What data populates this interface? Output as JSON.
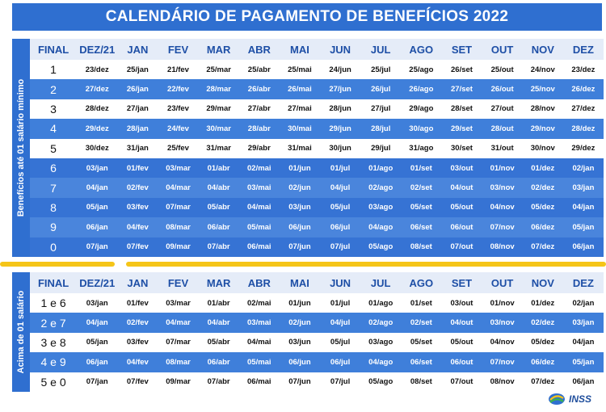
{
  "title": "CALENDÁRIO DE PAGAMENTO DE BENEFÍCIOS 2022",
  "headers": [
    "FINAL",
    "DEZ/21",
    "JAN",
    "FEV",
    "MAR",
    "ABR",
    "MAI",
    "JUN",
    "JUL",
    "AGO",
    "SET",
    "OUT",
    "NOV",
    "DEZ"
  ],
  "section1": {
    "side_label": "Benefícios até 01 salário mínimo",
    "rows": [
      [
        "1",
        "23/dez",
        "25/jan",
        "21/fev",
        "25/mar",
        "25/abr",
        "25/mai",
        "24/jun",
        "25/jul",
        "25/ago",
        "26/set",
        "25/out",
        "24/nov",
        "23/dez"
      ],
      [
        "2",
        "27/dez",
        "26/jan",
        "22/fev",
        "28/mar",
        "26/abr",
        "26/mai",
        "27/jun",
        "26/jul",
        "26/ago",
        "27/set",
        "26/out",
        "25/nov",
        "26/dez"
      ],
      [
        "3",
        "28/dez",
        "27/jan",
        "23/fev",
        "29/mar",
        "27/abr",
        "27/mai",
        "28/jun",
        "27/jul",
        "29/ago",
        "28/set",
        "27/out",
        "28/nov",
        "27/dez"
      ],
      [
        "4",
        "29/dez",
        "28/jan",
        "24/fev",
        "30/mar",
        "28/abr",
        "30/mai",
        "29/jun",
        "28/jul",
        "30/ago",
        "29/set",
        "28/out",
        "29/nov",
        "28/dez"
      ],
      [
        "5",
        "30/dez",
        "31/jan",
        "25/fev",
        "31/mar",
        "29/abr",
        "31/mai",
        "30/jun",
        "29/jul",
        "31/ago",
        "30/set",
        "31/out",
        "30/nov",
        "29/dez"
      ],
      [
        "6",
        "03/jan",
        "01/fev",
        "03/mar",
        "01/abr",
        "02/mai",
        "01/jun",
        "01/jul",
        "01/ago",
        "01/set",
        "03/out",
        "01/nov",
        "01/dez",
        "02/jan"
      ],
      [
        "7",
        "04/jan",
        "02/fev",
        "04/mar",
        "04/abr",
        "03/mai",
        "02/jun",
        "04/jul",
        "02/ago",
        "02/set",
        "04/out",
        "03/nov",
        "02/dez",
        "03/jan"
      ],
      [
        "8",
        "05/jan",
        "03/fev",
        "07/mar",
        "05/abr",
        "04/mai",
        "03/jun",
        "05/jul",
        "03/ago",
        "05/set",
        "05/out",
        "04/nov",
        "05/dez",
        "04/jan"
      ],
      [
        "9",
        "06/jan",
        "04/fev",
        "08/mar",
        "06/abr",
        "05/mai",
        "06/jun",
        "06/jul",
        "04/ago",
        "06/set",
        "06/out",
        "07/nov",
        "06/dez",
        "05/jan"
      ],
      [
        "0",
        "07/jan",
        "07/fev",
        "09/mar",
        "07/abr",
        "06/mai",
        "07/jun",
        "07/jul",
        "05/ago",
        "08/set",
        "07/out",
        "08/nov",
        "07/dez",
        "06/jan"
      ]
    ]
  },
  "section2": {
    "side_label": "Acima de 01 salário",
    "rows": [
      [
        "1 e 6",
        "03/jan",
        "01/fev",
        "03/mar",
        "01/abr",
        "02/mai",
        "01/jun",
        "01/jul",
        "01/ago",
        "01/set",
        "03/out",
        "01/nov",
        "01/dez",
        "02/jan"
      ],
      [
        "2 e 7",
        "04/jan",
        "02/fev",
        "04/mar",
        "04/abr",
        "03/mai",
        "02/jun",
        "04/jul",
        "02/ago",
        "02/set",
        "04/out",
        "03/nov",
        "02/dez",
        "03/jan"
      ],
      [
        "3 e 8",
        "05/jan",
        "03/fev",
        "07/mar",
        "05/abr",
        "04/mai",
        "03/jun",
        "05/jul",
        "03/ago",
        "05/set",
        "05/out",
        "04/nov",
        "05/dez",
        "04/jan"
      ],
      [
        "4 e 9",
        "06/jan",
        "04/fev",
        "08/mar",
        "06/abr",
        "05/mai",
        "06/jun",
        "06/jul",
        "04/ago",
        "06/set",
        "06/out",
        "07/nov",
        "06/dez",
        "05/jan"
      ],
      [
        "5 e 0",
        "07/jan",
        "07/fev",
        "09/mar",
        "07/abr",
        "06/mai",
        "07/jun",
        "07/jul",
        "05/ago",
        "08/set",
        "07/out",
        "08/nov",
        "07/dez",
        "06/jan"
      ]
    ]
  },
  "logo": {
    "text": "INSS",
    "icon": "inss-logo-icon"
  },
  "colors": {
    "primary_blue": "#2f6fd0",
    "row_blue": "#3f7fda",
    "header_bg": "#e5ecf8",
    "header_text": "#1e4fa6",
    "divider_yellow": "#f5c518"
  }
}
